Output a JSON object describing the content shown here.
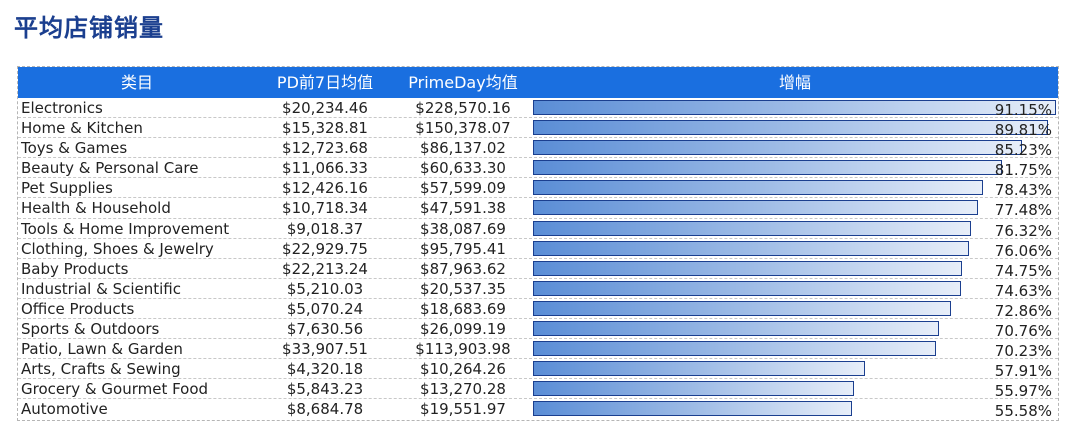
{
  "title": "平均店铺销量",
  "chart_data": {
    "type": "table",
    "headers": {
      "category": "类目",
      "pd_avg": "PD前7日均值",
      "prime_avg": "PrimeDay均值",
      "increase": "增幅"
    },
    "rows": [
      {
        "category": "Electronics",
        "pd_avg": "$20,234.46",
        "prime_avg": "$228,570.16",
        "increase_label": "91.15%",
        "increase": 91.15
      },
      {
        "category": "Home & Kitchen",
        "pd_avg": "$15,328.81",
        "prime_avg": "$150,378.07",
        "increase_label": "89.81%",
        "increase": 89.81
      },
      {
        "category": "Toys & Games",
        "pd_avg": "$12,723.68",
        "prime_avg": "$86,137.02",
        "increase_label": "85.23%",
        "increase": 85.23
      },
      {
        "category": "Beauty & Personal Care",
        "pd_avg": "$11,066.33",
        "prime_avg": "$60,633.30",
        "increase_label": "81.75%",
        "increase": 81.75
      },
      {
        "category": "Pet Supplies",
        "pd_avg": "$12,426.16",
        "prime_avg": "$57,599.09",
        "increase_label": "78.43%",
        "increase": 78.43
      },
      {
        "category": "Health & Household",
        "pd_avg": "$10,718.34",
        "prime_avg": "$47,591.38",
        "increase_label": "77.48%",
        "increase": 77.48
      },
      {
        "category": "Tools & Home Improvement",
        "pd_avg": "$9,018.37",
        "prime_avg": "$38,087.69",
        "increase_label": "76.32%",
        "increase": 76.32
      },
      {
        "category": "Clothing, Shoes & Jewelry",
        "pd_avg": "$22,929.75",
        "prime_avg": "$95,795.41",
        "increase_label": "76.06%",
        "increase": 76.06
      },
      {
        "category": "Baby Products",
        "pd_avg": "$22,213.24",
        "prime_avg": "$87,963.62",
        "increase_label": "74.75%",
        "increase": 74.75
      },
      {
        "category": "Industrial & Scientific",
        "pd_avg": "$5,210.03",
        "prime_avg": "$20,537.35",
        "increase_label": "74.63%",
        "increase": 74.63
      },
      {
        "category": "Office Products",
        "pd_avg": "$5,070.24",
        "prime_avg": "$18,683.69",
        "increase_label": "72.86%",
        "increase": 72.86
      },
      {
        "category": "Sports & Outdoors",
        "pd_avg": "$7,630.56",
        "prime_avg": "$26,099.19",
        "increase_label": "70.76%",
        "increase": 70.76
      },
      {
        "category": "Patio, Lawn & Garden",
        "pd_avg": "$33,907.51",
        "prime_avg": "$113,903.98",
        "increase_label": "70.23%",
        "increase": 70.23
      },
      {
        "category": "Arts, Crafts & Sewing",
        "pd_avg": "$4,320.18",
        "prime_avg": "$10,264.26",
        "increase_label": "57.91%",
        "increase": 57.91
      },
      {
        "category": "Grocery & Gourmet Food",
        "pd_avg": "$5,843.23",
        "prime_avg": "$13,270.28",
        "increase_label": "55.97%",
        "increase": 55.97
      },
      {
        "category": "Automotive",
        "pd_avg": "$8,684.78",
        "prime_avg": "$19,551.97",
        "increase_label": "55.58%",
        "increase": 55.58
      }
    ],
    "bar_max": 91.15
  },
  "colors": {
    "header_bg": "#1a6fe0",
    "title": "#1b3f8f",
    "bar_border": "#1b3f8f",
    "bar_start": "#5a8dd6",
    "bar_end": "#e7eef9"
  }
}
